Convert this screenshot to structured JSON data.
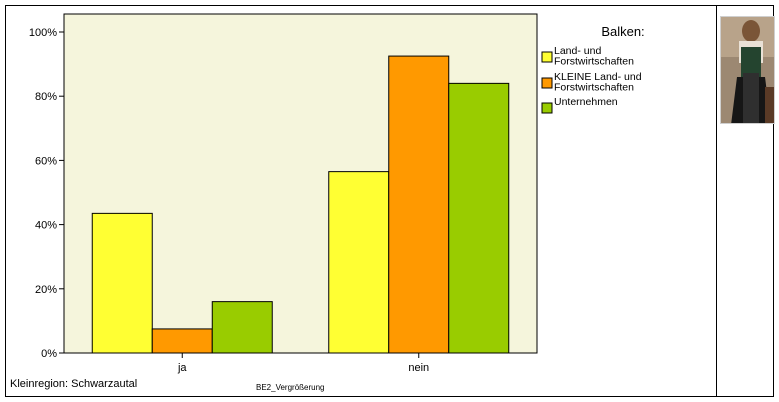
{
  "chart_data": {
    "type": "bar",
    "categories": [
      "ja",
      "nein"
    ],
    "series": [
      {
        "name": "Land- und Forstwirtschaften",
        "values": [
          43.5,
          56.5
        ],
        "color": "#FFFF33"
      },
      {
        "name": "KLEINE Land- und Forstwirtschaften",
        "values": [
          7.5,
          92.5
        ],
        "color": "#FF9900"
      },
      {
        "name": "Unternehmen",
        "values": [
          16,
          84
        ],
        "color": "#99CC00"
      }
    ],
    "ylim": [
      0,
      100
    ],
    "yticks": [
      "0%",
      "20%",
      "40%",
      "60%",
      "80%",
      "100%"
    ],
    "grid": false,
    "legend_placement": "top-right",
    "legend_title": "Balken:",
    "legend_labels": [
      [
        "Land- und",
        "Forstwirtschaften"
      ],
      [
        "KLEINE Land- und",
        "Forstwirtschaften"
      ],
      [
        "Unternehmen"
      ]
    ],
    "plot_background": "#F5F5DC"
  },
  "footer": {
    "region": "Kleinregion: Schwarzautal",
    "caption": "BE2_Vergrößerung"
  },
  "image": {
    "icon": "portrait-photo"
  }
}
